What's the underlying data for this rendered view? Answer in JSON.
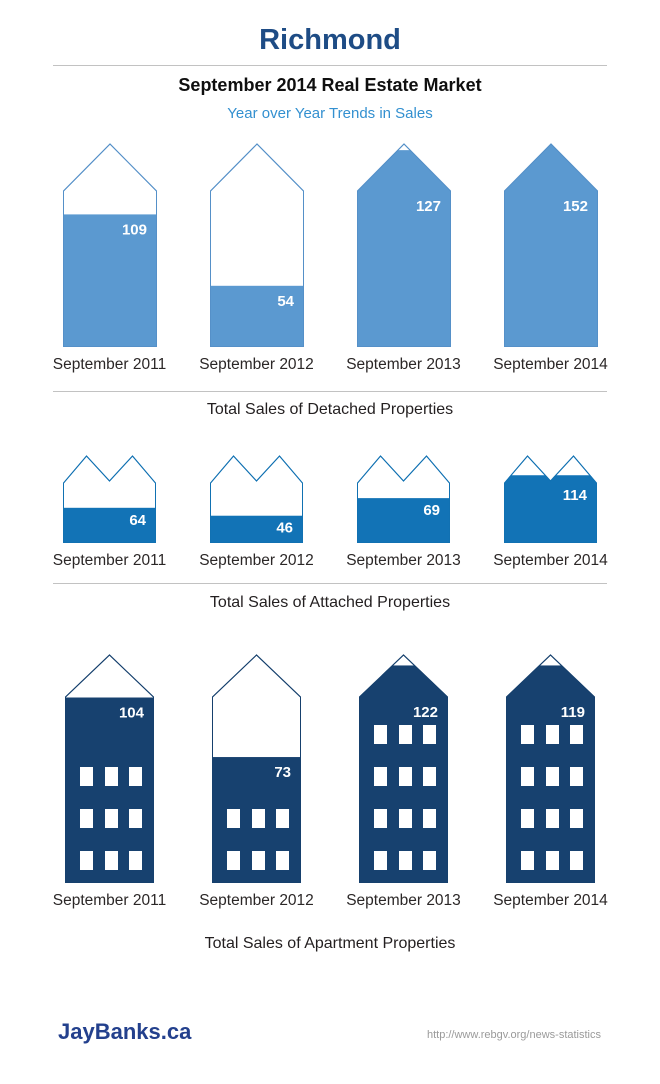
{
  "header": {
    "title": "Richmond",
    "subtitle": "September 2014 Real Estate Market",
    "tagline": "Year over Year Trends in Sales"
  },
  "footer": {
    "brand": "JayBanks.ca",
    "source_url": "http://www.rebgv.org/news-statistics"
  },
  "colors": {
    "title_blue": "#1e4c85",
    "tagline_blue": "#3390d0",
    "detached_fill": "#5b99d0",
    "attached_fill": "#1273b6",
    "apartment_fill": "#17416f",
    "value_text": "#ffffff",
    "divider_gray": "#c2c2c2",
    "label_text": "#2b2727",
    "url_gray": "#9a9a9a"
  },
  "chart_data": [
    {
      "type": "pictograph-fill",
      "shape": "house-detached",
      "title": "Total Sales of Detached Properties",
      "categories": [
        "September 2011",
        "September 2012",
        "September 2013",
        "September 2014"
      ],
      "values": [
        109,
        54,
        127,
        152
      ],
      "fill_pct": [
        0.65,
        0.3,
        0.965,
        1.0
      ],
      "fill_color": "#5b99d0",
      "outline_color": "#5590c8"
    },
    {
      "type": "pictograph-fill",
      "shape": "house-attached",
      "title": "Total Sales of Attached Properties",
      "categories": [
        "September 2011",
        "September 2012",
        "September 2013",
        "September 2014"
      ],
      "values": [
        64,
        46,
        69,
        114
      ],
      "fill_pct": [
        0.4,
        0.31,
        0.51,
        0.77
      ],
      "fill_color": "#1273b6",
      "outline_color": "#1171b2"
    },
    {
      "type": "pictograph-fill",
      "shape": "apartment-building",
      "title": "Total Sales of Apartment Properties",
      "categories": [
        "September 2011",
        "September 2012",
        "September 2013",
        "September 2014"
      ],
      "values": [
        104,
        73,
        122,
        119
      ],
      "fill_pct": [
        0.81,
        0.55,
        0.95,
        0.95
      ],
      "window_rows": [
        3,
        2,
        4,
        4
      ],
      "fill_color": "#17416f",
      "outline_color": "#16406d"
    }
  ]
}
